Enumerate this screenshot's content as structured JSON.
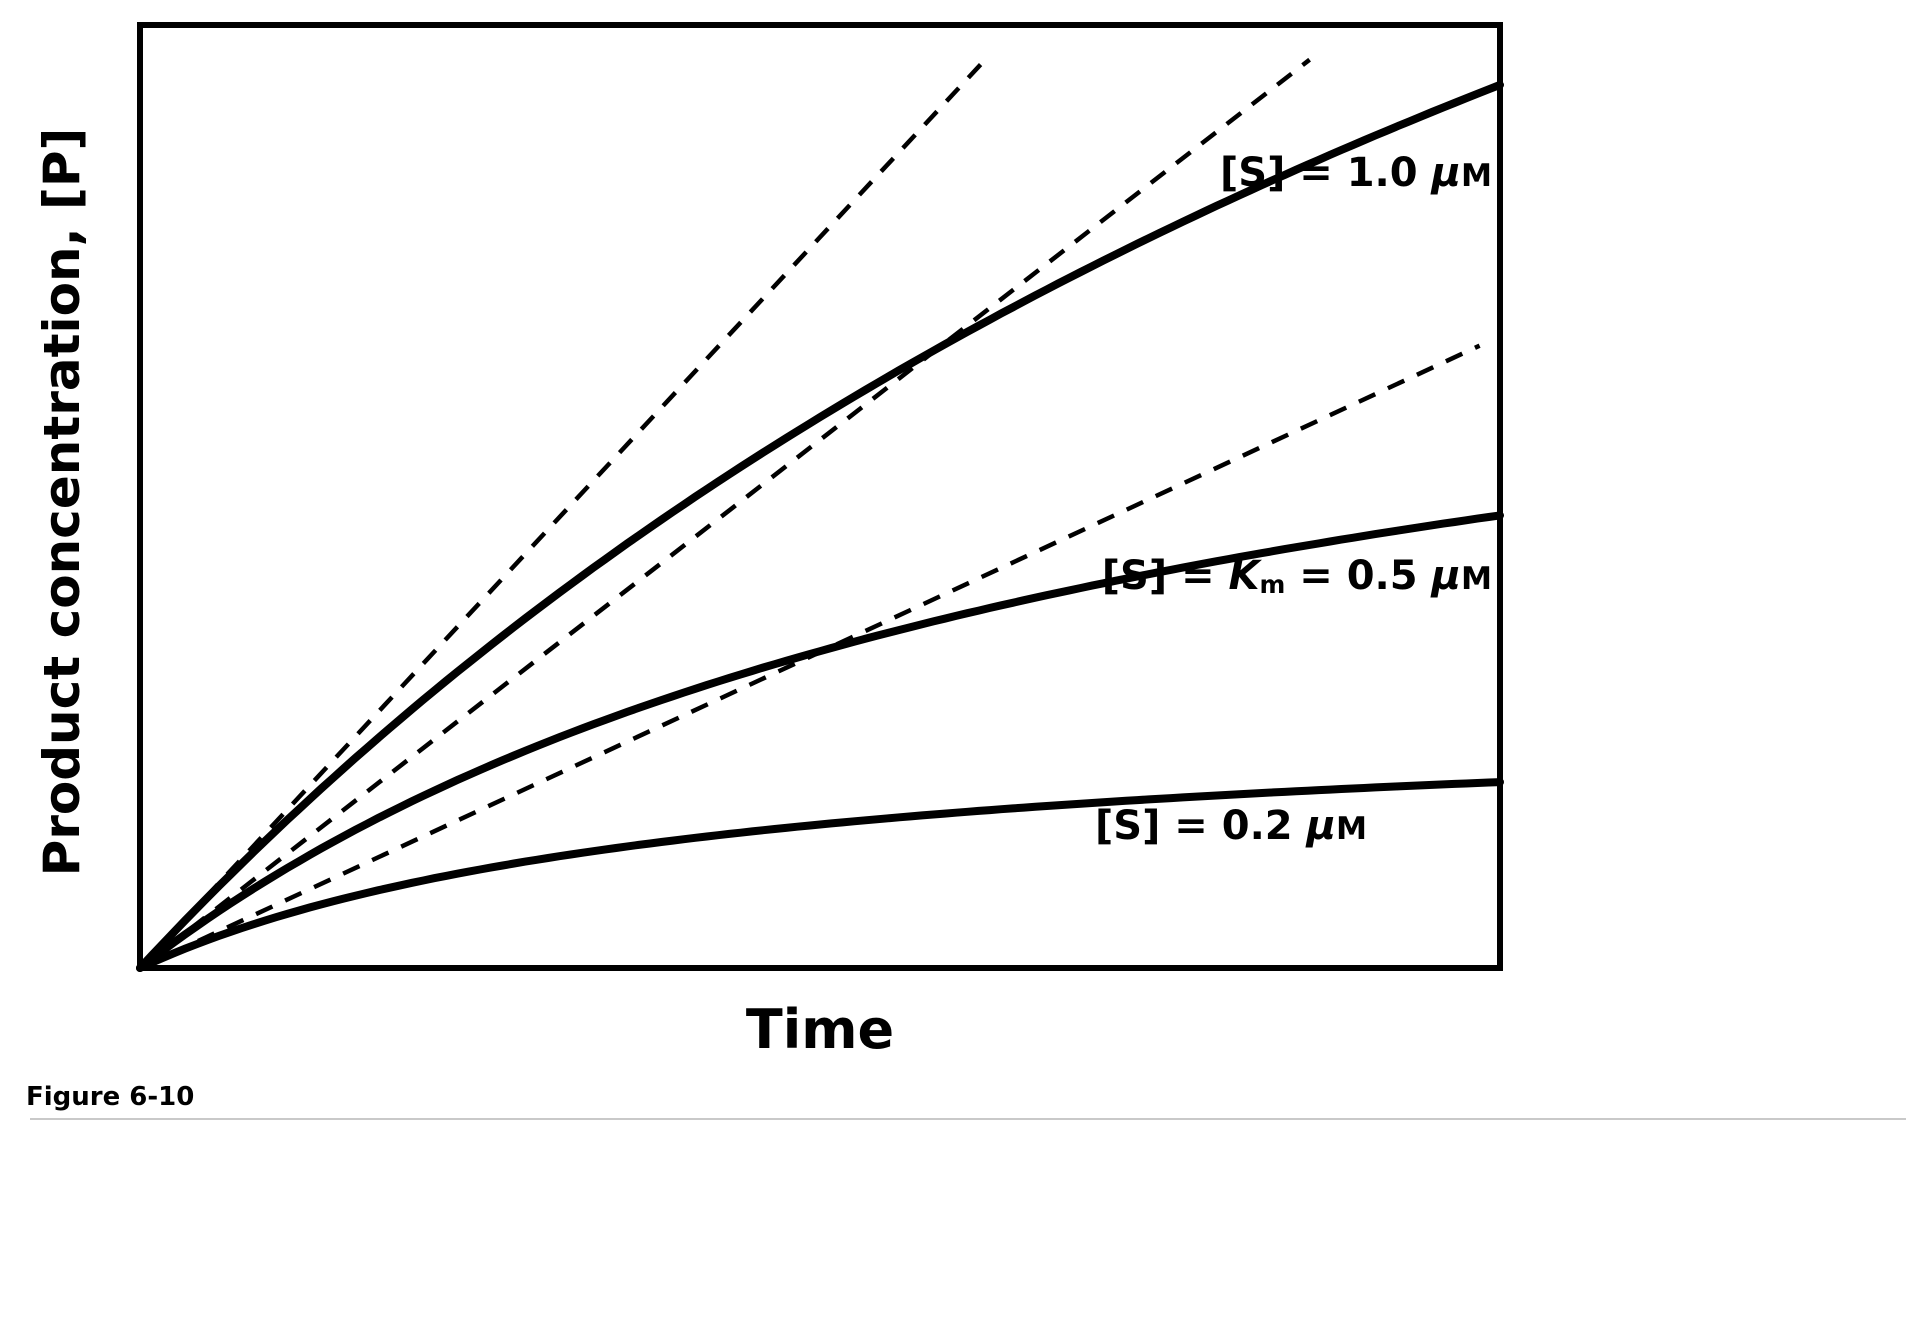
{
  "figure": {
    "caption": "Figure 6-10"
  },
  "chart_data": {
    "type": "line",
    "title": "",
    "xlabel": "Time",
    "ylabel": "Product concentration, [P]",
    "axes": {
      "tick_labels": "none",
      "frame": "closed-box",
      "grid": "off"
    },
    "x_range": [
      0,
      1
    ],
    "y_range": [
      0,
      1
    ],
    "line_color": "#000000",
    "background": "#ffffff",
    "series": [
      {
        "id": "s-1.0",
        "name": "[S] = 1.0 μM",
        "substrate_concentration_uM": 1.0,
        "label": {
          "prefix": "[S] = 1.0 ",
          "mu": "μ",
          "unit": "M"
        },
        "curve": {
          "model": "p = a*t/(b+t)",
          "a": 2.36,
          "b": 1.52
        },
        "points": [
          [
            0,
            0
          ],
          [
            0.1,
            0.15
          ],
          [
            0.2,
            0.27
          ],
          [
            0.3,
            0.39
          ],
          [
            0.4,
            0.49
          ],
          [
            0.5,
            0.58
          ],
          [
            0.6,
            0.67
          ],
          [
            0.7,
            0.74
          ],
          [
            0.8,
            0.81
          ],
          [
            0.9,
            0.88
          ],
          [
            1.0,
            0.94
          ]
        ],
        "tangent": {
          "slope": 1.55,
          "t_end": 0.625,
          "style": "dashed"
        }
      },
      {
        "id": "s-0.5",
        "name": "[S] = Km = 0.5 μM",
        "substrate_concentration_uM": 0.5,
        "label": {
          "prefix": "[S] = ",
          "k": "K",
          "k_sub": "m",
          "mid": " = 0.5 ",
          "mu": "μ",
          "unit": "M"
        },
        "curve": {
          "model": "p = a*t/(b+t)",
          "a": 0.84,
          "b": 0.75
        },
        "points": [
          [
            0,
            0
          ],
          [
            0.1,
            0.1
          ],
          [
            0.2,
            0.18
          ],
          [
            0.3,
            0.24
          ],
          [
            0.4,
            0.29
          ],
          [
            0.5,
            0.34
          ],
          [
            0.6,
            0.37
          ],
          [
            0.7,
            0.41
          ],
          [
            0.8,
            0.43
          ],
          [
            0.9,
            0.46
          ],
          [
            1.0,
            0.48
          ]
        ],
        "tangent": {
          "slope": 1.12,
          "t_end": 0.86,
          "style": "dashed"
        }
      },
      {
        "id": "s-0.2",
        "name": "[S] = 0.2 μM",
        "substrate_concentration_uM": 0.2,
        "label": {
          "prefix": "[S] = 0.2 ",
          "mu": "μ",
          "unit": "M"
        },
        "curve": {
          "model": "p = a*t/(b+t)",
          "a": 0.28,
          "b": 0.42
        },
        "points": [
          [
            0,
            0
          ],
          [
            0.1,
            0.054
          ],
          [
            0.2,
            0.09
          ],
          [
            0.3,
            0.116
          ],
          [
            0.4,
            0.136
          ],
          [
            0.5,
            0.152
          ],
          [
            0.6,
            0.164
          ],
          [
            0.7,
            0.174
          ],
          [
            0.8,
            0.183
          ],
          [
            0.9,
            0.19
          ],
          [
            1.0,
            0.196
          ]
        ],
        "tangent": {
          "slope": 0.67,
          "t_end": 0.985,
          "style": "dashed"
        }
      }
    ]
  }
}
